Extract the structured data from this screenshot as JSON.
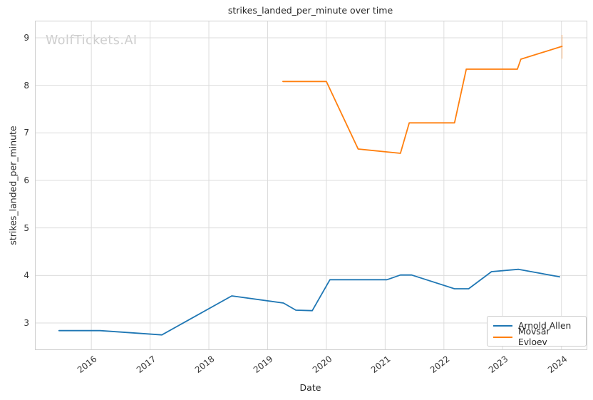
{
  "chart": {
    "title": "strikes_landed_per_minute over time",
    "watermark": "WolfTickets.AI",
    "xlabel": "Date",
    "ylabel": "strikes_landed_per_minute"
  },
  "chart_data": {
    "type": "line",
    "title": "strikes_landed_per_minute over time",
    "xlabel": "Date",
    "ylabel": "strikes_landed_per_minute",
    "watermark": "WolfTickets.AI",
    "grid": true,
    "legend_position": "lower right",
    "x_ticks": [
      2016,
      2017,
      2018,
      2019,
      2020,
      2021,
      2022,
      2023,
      2024
    ],
    "y_ticks": [
      3,
      4,
      5,
      6,
      7,
      8,
      9
    ],
    "xlim": [
      2015.04,
      2024.44
    ],
    "ylim": [
      2.43,
      9.36
    ],
    "colors": {
      "grid": "#dcdcdc",
      "spine": "#cfcfcf",
      "tick_text": "#333333",
      "text": "#262626",
      "watermark": "#cdcdcd"
    },
    "series": [
      {
        "name": "Arnold Allen",
        "color": "#1f77b4",
        "x": [
          2015.45,
          2016.15,
          2017.2,
          2018.39,
          2019.27,
          2019.48,
          2019.76,
          2020.06,
          2021.03,
          2021.26,
          2021.45,
          2022.18,
          2022.42,
          2022.81,
          2023.27,
          2023.97
        ],
        "y": [
          2.84,
          2.84,
          2.75,
          3.57,
          3.42,
          3.27,
          3.26,
          3.91,
          3.91,
          4.01,
          4.01,
          3.72,
          3.72,
          4.08,
          4.13,
          3.97
        ]
      },
      {
        "name": "Movsar Evloev",
        "color": "#ff7f0e",
        "x": [
          2019.26,
          2020.0,
          2020.54,
          2021.26,
          2021.41,
          2022.18,
          2022.38,
          2023.25,
          2023.31,
          2024.01
        ],
        "y": [
          8.08,
          8.08,
          6.66,
          6.57,
          7.21,
          7.21,
          8.34,
          8.34,
          8.55,
          8.82
        ],
        "end_tick": {
          "x": 2024.01,
          "y_from": 8.56,
          "y_to": 9.06
        }
      }
    ]
  }
}
